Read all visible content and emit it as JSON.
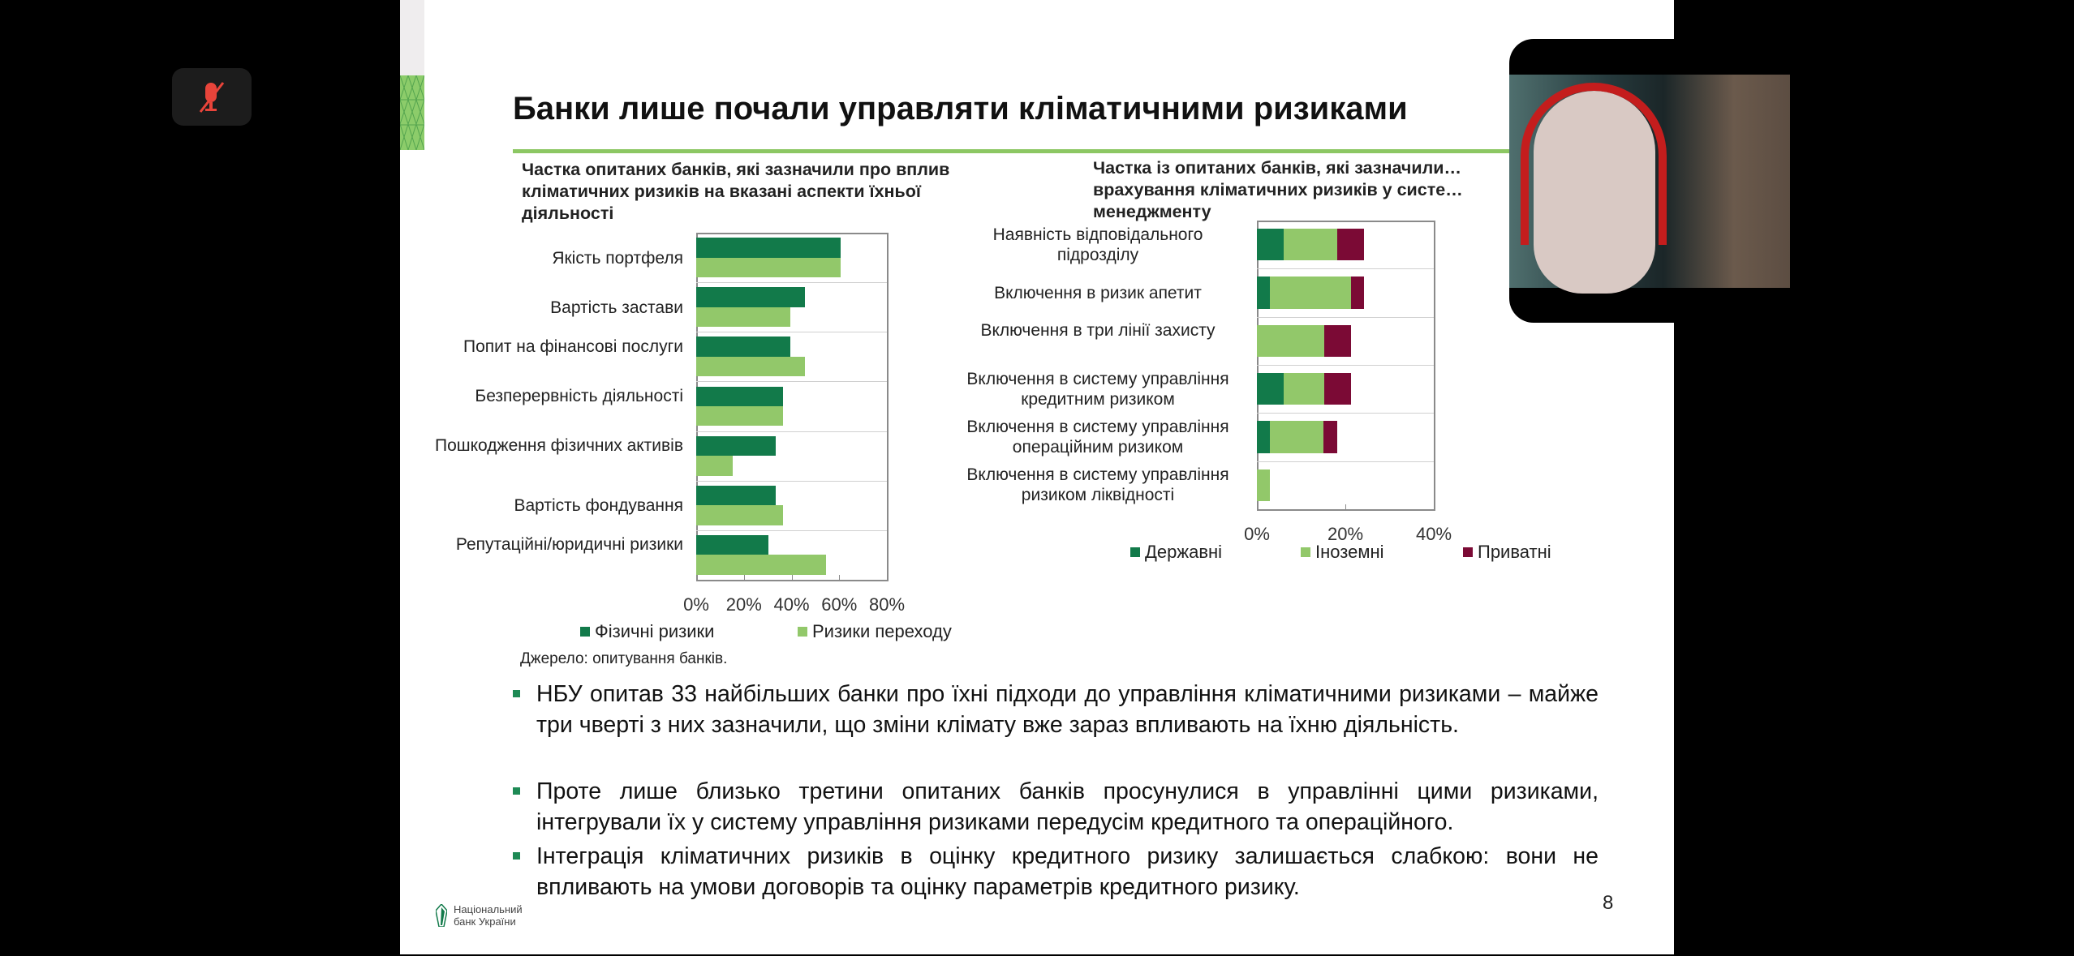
{
  "call": {
    "mic_status": "muted",
    "mic_icon": "mic-off-icon",
    "participant_video": "speaker-webcam"
  },
  "slide": {
    "title": "Банки лише почали управляти кліматичними ризиками",
    "page_number": "8",
    "source": "Джерело: опитування банків.",
    "logo": {
      "line1": "Національний",
      "line2": "банк України"
    },
    "bullets": [
      "НБУ опитав 33 найбільших банки про їхні підходи до управління кліматичними ризиками – майже три чверті з них зазначили, що зміни клімату вже зараз впливають на їхню діяльність.",
      "Проте лише близько третини опитаних банків просунулися в управлінні цими ризиками, інтегрували їх у систему управління ризиками передусім кредитного та операційного.",
      "Інтеграція кліматичних ризиків в оцінку кредитного ризику залишається слабкою: вони не впливають на умови договорів та оцінку параметрів кредитного ризику."
    ],
    "colors": {
      "dark_green": "#127a4a",
      "light_green": "#92c86a",
      "maroon": "#7b0a35",
      "accent": "#8cc763"
    }
  },
  "chart_data": [
    {
      "type": "bar",
      "orientation": "horizontal",
      "title": "Частка опитаних банків, які зазначили про вплив кліматичних ризиків на вказані аспекти їхньої діяльності",
      "categories": [
        "Якість портфеля",
        "Вартість застави",
        "Попит на фінансові послуги",
        "Безперервність діяльності",
        "Пошкодження фізичних активів",
        "Вартість фондування",
        "Репутаційні/юридичні ризики"
      ],
      "series": [
        {
          "name": "Фізичні ризики",
          "color": "#127a4a",
          "values": [
            60.6,
            45.5,
            39.4,
            36.4,
            33.3,
            33.3,
            30.3
          ]
        },
        {
          "name": "Ризики переходу",
          "color": "#92c86a",
          "values": [
            60.6,
            39.4,
            45.5,
            36.4,
            15.2,
            36.4,
            54.5
          ]
        }
      ],
      "xlim": [
        0,
        80
      ],
      "xticks": [
        "0%",
        "20%",
        "40%",
        "60%",
        "80%"
      ],
      "legend": "bottom"
    },
    {
      "type": "bar",
      "orientation": "horizontal",
      "stacked": true,
      "title": "Частка із опитаних банків, які зазначили… врахування кліматичних ризиків у систе… менеджменту",
      "categories": [
        "Наявність відповідального підрозділу",
        "Включення в ризик апетит",
        "Включення в три лінії захисту",
        "Включення в систему управління кредитним ризиком",
        "Включення в систему управління операційним ризиком",
        "Включення в систему управління ризиком ліквідності"
      ],
      "series": [
        {
          "name": "Державні",
          "color": "#127a4a",
          "values": [
            6.1,
            3.0,
            0,
            6.1,
            3.0,
            0
          ]
        },
        {
          "name": "Іноземні",
          "color": "#92c86a",
          "values": [
            12.1,
            18.2,
            15.2,
            9.1,
            12.1,
            3.0
          ]
        },
        {
          "name": "Приватні",
          "color": "#7b0a35",
          "values": [
            6.1,
            3.0,
            6.1,
            6.1,
            3.0,
            0
          ]
        }
      ],
      "xlim": [
        0,
        40
      ],
      "xticks": [
        "0%",
        "20%",
        "40%"
      ],
      "legend": "bottom"
    }
  ]
}
